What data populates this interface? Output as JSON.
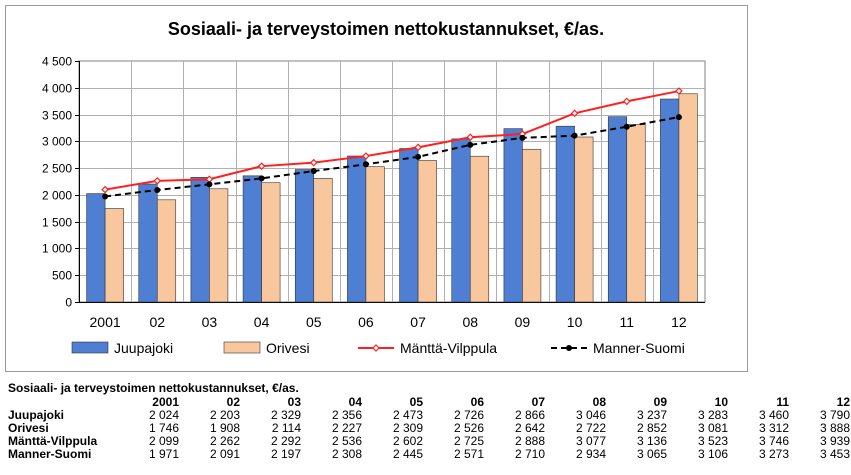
{
  "chart_data": {
    "type": "bar",
    "title": "Sosiaali- ja terveystoimen nettokustannukset, €/as.",
    "categories": [
      "2001",
      "02",
      "03",
      "04",
      "05",
      "06",
      "07",
      "08",
      "09",
      "10",
      "11",
      "12"
    ],
    "ylim": [
      0,
      4500
    ],
    "yticks": [
      0,
      500,
      1000,
      1500,
      2000,
      2500,
      3000,
      3500,
      4000,
      4500
    ],
    "ytick_labels": [
      "0",
      "500",
      "1 000",
      "1 500",
      "2 000",
      "2 500",
      "3 000",
      "3 500",
      "4 000",
      "4 500"
    ],
    "grid": true,
    "legend_position": "bottom",
    "series": [
      {
        "name": "Juupajoki",
        "kind": "bar",
        "color": "#4f7fd2",
        "values": [
          2024,
          2203,
          2329,
          2356,
          2473,
          2726,
          2866,
          3046,
          3237,
          3283,
          3460,
          3790
        ]
      },
      {
        "name": "Orivesi",
        "kind": "bar",
        "color": "#f9c79e",
        "values": [
          1746,
          1908,
          2114,
          2227,
          2309,
          2526,
          2642,
          2722,
          2852,
          3081,
          3312,
          3888
        ]
      },
      {
        "name": "Mänttä-Vilppula",
        "kind": "line",
        "color": "#ff1f1f",
        "values": [
          2099,
          2262,
          2292,
          2536,
          2602,
          2725,
          2888,
          3077,
          3136,
          3523,
          3746,
          3939
        ]
      },
      {
        "name": "Manner-Suomi",
        "kind": "line",
        "color": "#000000",
        "values": [
          1971,
          2091,
          2197,
          2308,
          2445,
          2571,
          2710,
          2934,
          3065,
          3106,
          3273,
          3453
        ]
      }
    ]
  },
  "table": {
    "title": "Sosiaali- ja terveystoimen nettokustannukset, €/as.",
    "headers": [
      "2001",
      "02",
      "03",
      "04",
      "05",
      "06",
      "07",
      "08",
      "09",
      "10",
      "11",
      "12"
    ],
    "rows": [
      {
        "label": "Juupajoki",
        "values": [
          "2 024",
          "2 203",
          "2 329",
          "2 356",
          "2 473",
          "2 726",
          "2 866",
          "3 046",
          "3 237",
          "3 283",
          "3 460",
          "3 790"
        ]
      },
      {
        "label": "Orivesi",
        "values": [
          "1 746",
          "1 908",
          "2 114",
          "2 227",
          "2 309",
          "2 526",
          "2 642",
          "2 722",
          "2 852",
          "3 081",
          "3 312",
          "3 888"
        ]
      },
      {
        "label": "Mänttä-Vilppula",
        "values": [
          "2 099",
          "2 262",
          "2 292",
          "2 536",
          "2 602",
          "2 725",
          "2 888",
          "3 077",
          "3 136",
          "3 523",
          "3 746",
          "3 939"
        ]
      },
      {
        "label": "Manner-Suomi",
        "values": [
          "1 971",
          "2 091",
          "2 197",
          "2 308",
          "2 445",
          "2 571",
          "2 710",
          "2 934",
          "3 065",
          "3 106",
          "3 273",
          "3 453"
        ]
      }
    ]
  }
}
